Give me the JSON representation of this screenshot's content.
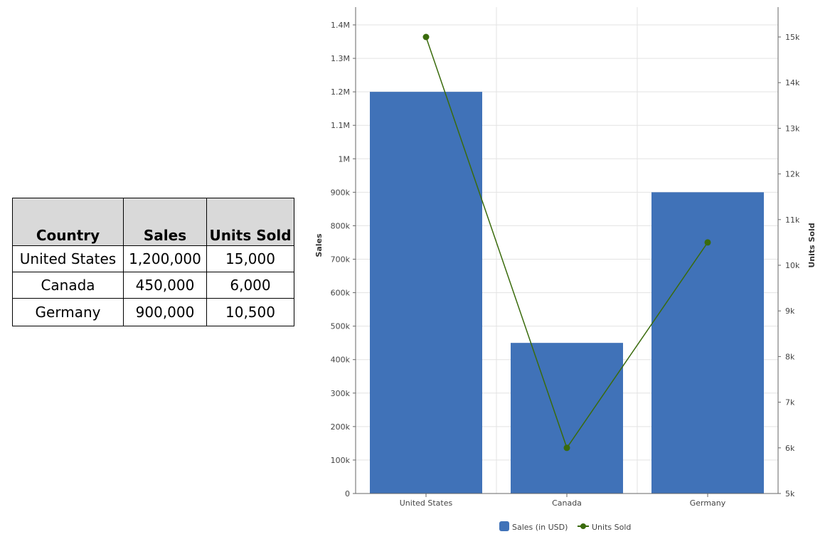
{
  "table": {
    "headers": [
      "Country",
      "Sales",
      "Units Sold"
    ],
    "rows": [
      [
        "United States",
        "1,200,000",
        "15,000"
      ],
      [
        "Canada",
        "450,000",
        "6,000"
      ],
      [
        "Germany",
        "900,000",
        "10,500"
      ]
    ]
  },
  "chart_data": {
    "type": "bar",
    "categories": [
      "United States",
      "Canada",
      "Germany"
    ],
    "series": [
      {
        "name": "Sales (in USD)",
        "type": "bar",
        "axis": "left",
        "values": [
          1200000,
          450000,
          900000
        ],
        "color": "#4072b8"
      },
      {
        "name": "Units Sold",
        "type": "line",
        "axis": "right",
        "values": [
          15000,
          6000,
          10500
        ],
        "color": "#3a6b0c"
      }
    ],
    "ylabel": "Sales",
    "y2label": "Units Sold",
    "ylim": [
      0,
      1400000
    ],
    "y2lim": [
      5000,
      15000
    ],
    "yticks": [
      "0",
      "100k",
      "200k",
      "300k",
      "400k",
      "500k",
      "600k",
      "700k",
      "800k",
      "900k",
      "1M",
      "1.1M",
      "1.2M",
      "1.3M",
      "1.4M"
    ],
    "y2ticks": [
      "5k",
      "6k",
      "7k",
      "8k",
      "9k",
      "10k",
      "11k",
      "12k",
      "13k",
      "14k",
      "15k"
    ],
    "grid": true,
    "legend": "bottom"
  }
}
